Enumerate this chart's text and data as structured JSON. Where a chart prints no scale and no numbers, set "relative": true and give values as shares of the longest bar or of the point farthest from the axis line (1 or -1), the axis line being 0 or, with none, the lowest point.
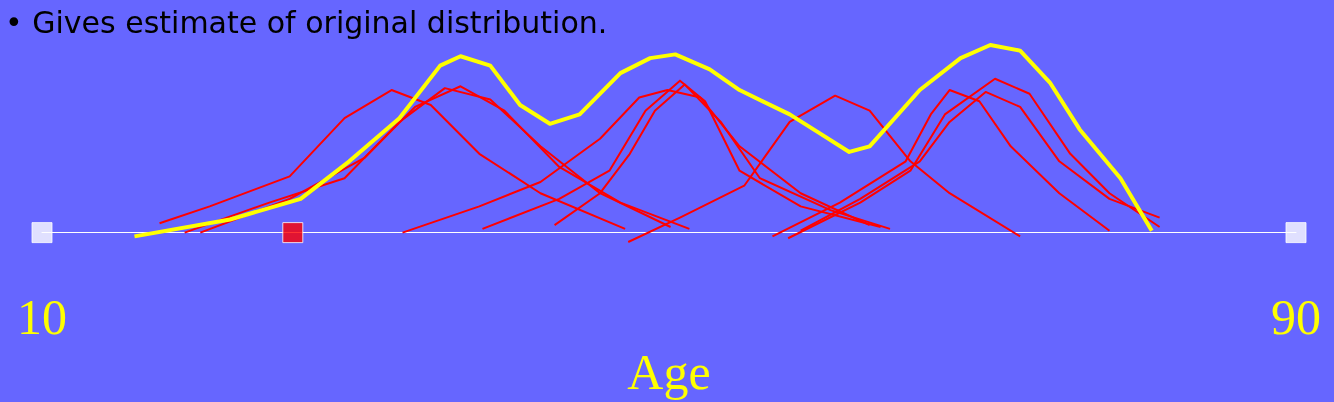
{
  "chart_data": {
    "type": "line",
    "title": "• Gives estimate of original distribution.",
    "xlabel": "Age",
    "relative": true,
    "xlim": [
      10,
      90
    ],
    "xticks": [
      10,
      90
    ],
    "grid": false,
    "marker": "none",
    "series": [
      {
        "color": "#ff0000",
        "x": [
          17.5,
          20.7,
          25.8,
          29.3,
          32.3,
          34.8,
          37.9,
          41.8,
          47.2
        ],
        "values": [
          0.05,
          0.14,
          0.3,
          0.61,
          0.76,
          0.68,
          0.42,
          0.21,
          0.02
        ]
      },
      {
        "color": "#ff0000",
        "x": [
          19.1,
          24.5,
          29.3,
          32.8,
          35.7,
          38.6,
          41.8,
          45.6,
          50.1
        ],
        "values": [
          0,
          0.16,
          0.29,
          0.59,
          0.77,
          0.71,
          0.46,
          0.21,
          0.03
        ]
      },
      {
        "color": "#ff0000",
        "x": [
          20.1,
          25.8,
          30.6,
          33.8,
          36.7,
          39.5,
          43.0,
          46.9,
          51.3
        ],
        "values": [
          0,
          0.18,
          0.4,
          0.67,
          0.78,
          0.65,
          0.35,
          0.16,
          0.02
        ]
      },
      {
        "color": "#ff0000",
        "x": [
          33.0,
          37.9,
          41.8,
          45.6,
          48.1,
          49.9,
          52.0,
          54.5,
          58.4,
          62.8
        ],
        "values": [
          0,
          0.14,
          0.27,
          0.5,
          0.72,
          0.76,
          0.72,
          0.46,
          0.21,
          0.04
        ]
      },
      {
        "color": "#ff0000",
        "x": [
          38.1,
          43.0,
          46.2,
          48.5,
          50.7,
          52.3,
          54.5,
          58.4,
          63.5
        ],
        "values": [
          0.02,
          0.18,
          0.33,
          0.65,
          0.81,
          0.7,
          0.33,
          0.14,
          0.03
        ]
      },
      {
        "color": "#ff0000",
        "x": [
          42.7,
          45.6,
          47.5,
          49.1,
          51.0,
          53.3,
          55.8,
          60.3,
          64.1
        ],
        "values": [
          0.04,
          0.21,
          0.42,
          0.65,
          0.79,
          0.59,
          0.29,
          0.12,
          0.02
        ]
      },
      {
        "color": "#ff0000",
        "x": [
          47.4,
          50.7,
          54.8,
          57.7,
          60.6,
          62.8,
          65.4,
          67.9,
          72.4
        ],
        "values": [
          -0.05,
          0.08,
          0.25,
          0.59,
          0.73,
          0.65,
          0.38,
          0.21,
          -0.02
        ]
      },
      {
        "color": "#ff0000",
        "x": [
          56.6,
          60.9,
          65.1,
          66.7,
          67.9,
          69.8,
          71.8,
          74.9,
          78.1
        ],
        "values": [
          -0.02,
          0.16,
          0.38,
          0.63,
          0.76,
          0.7,
          0.46,
          0.21,
          0.01
        ]
      },
      {
        "color": "#ff0000",
        "x": [
          57.6,
          62.2,
          65.4,
          67.6,
          70.8,
          73.0,
          75.6,
          78.1,
          81.3
        ],
        "values": [
          -0.03,
          0.16,
          0.33,
          0.63,
          0.82,
          0.74,
          0.42,
          0.21,
          0.03
        ]
      },
      {
        "color": "#ff0000",
        "x": [
          58.4,
          62.2,
          66.0,
          67.9,
          70.2,
          72.4,
          74.9,
          78.1,
          81.3
        ],
        "values": [
          0.01,
          0.18,
          0.38,
          0.59,
          0.75,
          0.67,
          0.38,
          0.18,
          0.08
        ]
      },
      {
        "color": "#ffff00",
        "x": [
          15.9,
          22.0,
          26.5,
          29.6,
          32.8,
          35.4,
          36.7,
          38.6,
          40.5,
          42.4,
          44.3,
          46.9,
          48.8,
          50.4,
          52.6,
          54.5,
          57.7,
          59.6,
          61.5,
          62.8,
          66.0,
          68.6,
          70.5,
          72.4,
          74.3,
          76.2,
          78.8,
          80.8
        ],
        "values": [
          -0.02,
          0.07,
          0.18,
          0.38,
          0.61,
          0.89,
          0.94,
          0.89,
          0.68,
          0.58,
          0.63,
          0.85,
          0.93,
          0.95,
          0.87,
          0.76,
          0.63,
          0.53,
          0.43,
          0.46,
          0.76,
          0.93,
          1.0,
          0.97,
          0.8,
          0.55,
          0.29,
          0.01
        ]
      },
      {
        "type": "scatter",
        "marker": "square",
        "x": [
          10,
          26.0,
          90
        ],
        "values": [
          0,
          0,
          0
        ],
        "colors": [
          "#ffffff",
          "#ff0000",
          "#ffffff"
        ]
      }
    ]
  }
}
